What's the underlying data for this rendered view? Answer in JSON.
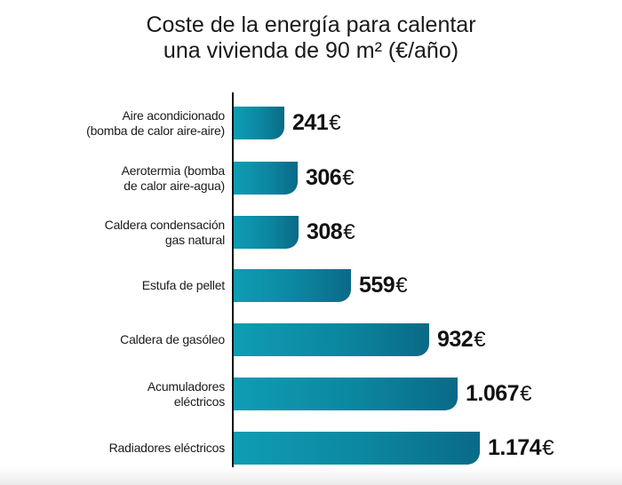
{
  "chart_data": {
    "type": "bar",
    "orientation": "horizontal",
    "title": "Coste de la energía para calentar una vivienda de 90 m² (€/año)",
    "title_lines": [
      "Coste de la energía para calentar",
      "una vivienda de 90 m² (€/año)"
    ],
    "xlabel": "",
    "ylabel": "",
    "unit": "€",
    "grid": false,
    "legend": null,
    "categories": [
      "Aire acondicionado (bomba de calor aire-aire)",
      "Aerotermia (bomba de calor aire-agua)",
      "Caldera condensación gas natural",
      "Estufa de pellet",
      "Caldera de gasóleo",
      "Acumuladores eléctricos",
      "Radiadores eléctricos"
    ],
    "values": [
      241,
      306,
      308,
      559,
      932,
      1067,
      1174
    ],
    "value_labels": [
      "241",
      "306",
      "308",
      "559",
      "932",
      "1.067",
      "1.174"
    ],
    "bar_color_start": "#0f9db4",
    "bar_color_end": "#0a6a87"
  },
  "rows": [
    {
      "line1": "Aire acondicionado",
      "line2": "(bomba de calor aire-aire)",
      "value": "241",
      "currency": "€"
    },
    {
      "line1": "Aerotermia (bomba",
      "line2": "de calor aire-agua)",
      "value": "306",
      "currency": "€"
    },
    {
      "line1": "Caldera condensación",
      "line2": "gas natural",
      "value": "308",
      "currency": "€"
    },
    {
      "line1": "Estufa de pellet",
      "line2": "",
      "value": "559",
      "currency": "€"
    },
    {
      "line1": "Caldera de gasóleo",
      "line2": "",
      "value": "932",
      "currency": "€"
    },
    {
      "line1": "Acumuladores",
      "line2": "eléctricos",
      "value": "1.067",
      "currency": "€"
    },
    {
      "line1": "Radiadores eléctricos",
      "line2": "",
      "value": "1.174",
      "currency": "€"
    }
  ]
}
